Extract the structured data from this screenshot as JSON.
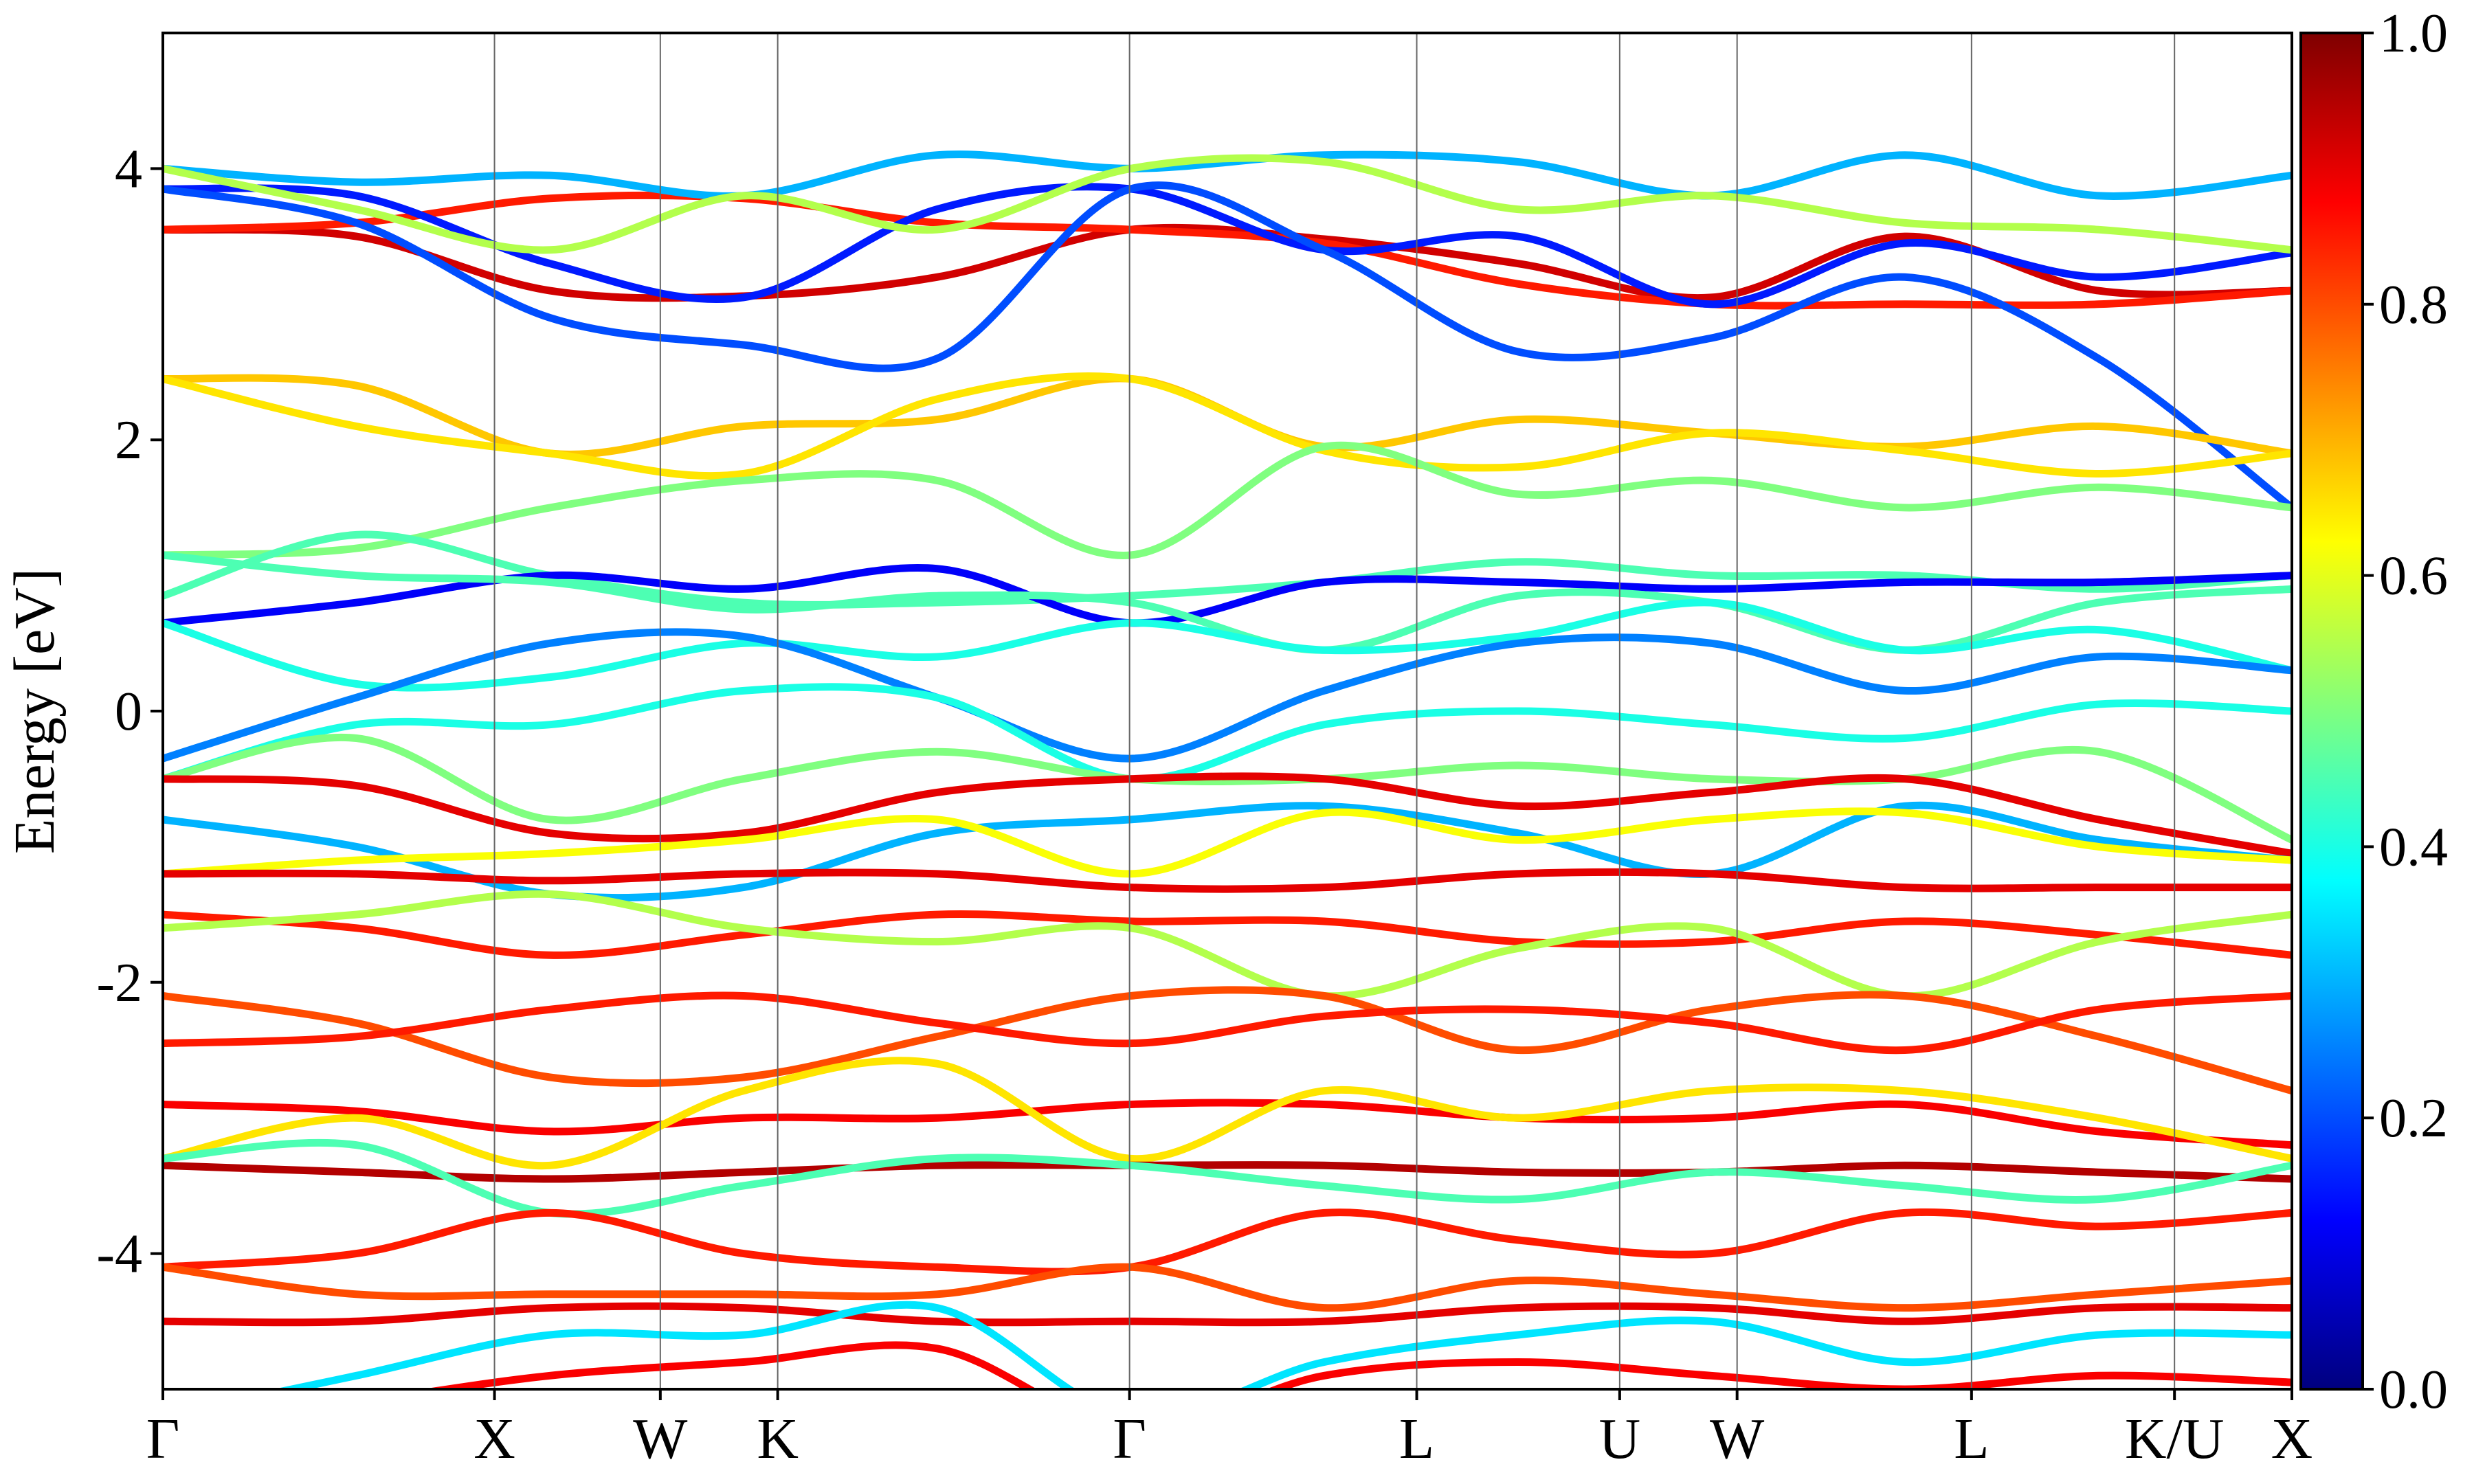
{
  "chart_data": {
    "type": "line",
    "title": "",
    "xlabel": "",
    "ylabel": "Energy [eV]",
    "ylim": [
      -5,
      5
    ],
    "grid": false,
    "legend": "none",
    "x_high_symmetry": [
      {
        "label": "Γ",
        "x": 0.0
      },
      {
        "label": "X",
        "x": 1.0
      },
      {
        "label": "W",
        "x": 1.5
      },
      {
        "label": "K",
        "x": 1.854
      },
      {
        "label": "Γ",
        "x": 2.915
      },
      {
        "label": "L",
        "x": 3.781
      },
      {
        "label": "U",
        "x": 4.393
      },
      {
        "label": "W",
        "x": 4.747
      },
      {
        "label": "L",
        "x": 5.454
      },
      {
        "label": "K/U",
        "x": 6.066
      },
      {
        "label": "X",
        "x": 6.42
      }
    ],
    "xlim": [
      0,
      6.42
    ],
    "yticks": [
      {
        "value": 4,
        "label": "4"
      },
      {
        "value": 2,
        "label": "2"
      },
      {
        "value": 0,
        "label": "0"
      },
      {
        "value": -2,
        "label": "-2"
      },
      {
        "value": -4,
        "label": "-4"
      }
    ],
    "colorbar": {
      "colormap": "jet",
      "range": [
        0.0,
        1.0
      ],
      "ticks": [
        {
          "value": 0.0,
          "label": "0.0"
        },
        {
          "value": 0.2,
          "label": "0.2"
        },
        {
          "value": 0.4,
          "label": "0.4"
        },
        {
          "value": 0.6,
          "label": "0.6"
        },
        {
          "value": 0.8,
          "label": "0.8"
        },
        {
          "value": 1.0,
          "label": "1.0"
        }
      ],
      "stops": [
        "#00007f",
        "#0000ff",
        "#007fff",
        "#00ffff",
        "#7fff7f",
        "#ffff00",
        "#ff7f00",
        "#ff0000",
        "#7f0000"
      ]
    },
    "series": [
      {
        "weight": 0.92,
        "values": [
          3.55,
          3.5,
          3.1,
          3.06,
          3.2,
          3.55,
          3.48,
          3.3,
          3.05,
          3.5,
          3.1,
          3.1
        ]
      },
      {
        "weight": 0.85,
        "values": [
          3.55,
          3.6,
          3.78,
          3.78,
          3.6,
          3.55,
          3.45,
          3.15,
          3.0,
          3.0,
          3.0,
          3.1
        ]
      },
      {
        "weight": 0.15,
        "values": [
          3.85,
          3.8,
          3.3,
          3.05,
          3.7,
          3.85,
          3.4,
          3.5,
          3.0,
          3.45,
          3.2,
          3.38
        ]
      },
      {
        "weight": 0.3,
        "values": [
          4.0,
          3.9,
          3.95,
          3.8,
          4.1,
          4.0,
          4.1,
          4.05,
          3.8,
          4.1,
          3.8,
          3.95
        ]
      },
      {
        "weight": 0.55,
        "values": [
          4.0,
          3.7,
          3.4,
          3.8,
          3.55,
          4.0,
          4.05,
          3.7,
          3.8,
          3.6,
          3.55,
          3.4
        ]
      },
      {
        "weight": 0.2,
        "values": [
          3.85,
          3.6,
          2.9,
          2.7,
          2.6,
          3.85,
          3.4,
          2.65,
          2.75,
          3.2,
          2.6,
          1.5
        ]
      },
      {
        "weight": 0.68,
        "values": [
          2.45,
          2.4,
          1.9,
          2.1,
          2.15,
          2.45,
          1.95,
          2.15,
          2.05,
          1.95,
          2.1,
          1.9
        ]
      },
      {
        "weight": 0.65,
        "values": [
          2.45,
          2.1,
          1.9,
          1.75,
          2.3,
          2.45,
          1.92,
          1.8,
          2.05,
          1.92,
          1.75,
          1.9
        ]
      },
      {
        "weight": 0.5,
        "values": [
          1.15,
          1.2,
          1.5,
          1.7,
          1.7,
          1.15,
          1.95,
          1.6,
          1.7,
          1.5,
          1.65,
          1.5
        ]
      },
      {
        "weight": 0.45,
        "values": [
          0.85,
          1.3,
          1.0,
          0.8,
          0.8,
          0.85,
          0.95,
          1.1,
          1.0,
          1.0,
          0.9,
          1.0
        ]
      },
      {
        "weight": 0.12,
        "values": [
          0.65,
          0.8,
          1.0,
          0.9,
          1.05,
          0.65,
          0.95,
          0.95,
          0.9,
          0.95,
          0.95,
          1.0
        ]
      },
      {
        "weight": 0.45,
        "values": [
          1.15,
          1.0,
          0.95,
          0.75,
          0.85,
          0.8,
          0.45,
          0.85,
          0.8,
          0.45,
          0.8,
          0.9
        ]
      },
      {
        "weight": 0.4,
        "values": [
          0.65,
          0.2,
          0.25,
          0.5,
          0.4,
          0.65,
          0.45,
          0.55,
          0.8,
          0.45,
          0.6,
          0.3
        ]
      },
      {
        "weight": 0.25,
        "values": [
          -0.35,
          0.1,
          0.5,
          0.55,
          0.1,
          -0.35,
          0.15,
          0.5,
          0.5,
          0.15,
          0.4,
          0.3
        ]
      },
      {
        "weight": 0.4,
        "values": [
          -0.5,
          -0.1,
          -0.1,
          0.15,
          0.1,
          -0.5,
          -0.1,
          0.0,
          -0.1,
          -0.2,
          0.05,
          0.0
        ]
      },
      {
        "weight": 0.5,
        "values": [
          -0.5,
          -0.2,
          -0.8,
          -0.5,
          -0.3,
          -0.5,
          -0.5,
          -0.4,
          -0.5,
          -0.5,
          -0.3,
          -0.95
        ]
      },
      {
        "weight": 0.9,
        "values": [
          -0.5,
          -0.55,
          -0.9,
          -0.9,
          -0.6,
          -0.5,
          -0.5,
          -0.7,
          -0.6,
          -0.5,
          -0.8,
          -1.05
        ]
      },
      {
        "weight": 0.3,
        "values": [
          -0.8,
          -1.0,
          -1.35,
          -1.3,
          -0.9,
          -0.8,
          -0.7,
          -0.9,
          -1.2,
          -0.7,
          -0.95,
          -1.1
        ]
      },
      {
        "weight": 0.62,
        "values": [
          -1.2,
          -1.1,
          -1.05,
          -0.95,
          -0.8,
          -1.2,
          -0.75,
          -0.95,
          -0.8,
          -0.75,
          -1.0,
          -1.1
        ]
      },
      {
        "weight": 0.9,
        "values": [
          -1.2,
          -1.2,
          -1.25,
          -1.2,
          -1.2,
          -1.3,
          -1.3,
          -1.2,
          -1.2,
          -1.3,
          -1.3,
          -1.3
        ]
      },
      {
        "weight": 0.85,
        "values": [
          -1.5,
          -1.6,
          -1.8,
          -1.65,
          -1.5,
          -1.55,
          -1.55,
          -1.7,
          -1.7,
          -1.55,
          -1.65,
          -1.8
        ]
      },
      {
        "weight": 0.55,
        "values": [
          -1.6,
          -1.5,
          -1.35,
          -1.6,
          -1.7,
          -1.6,
          -2.1,
          -1.75,
          -1.6,
          -2.1,
          -1.7,
          -1.5
        ]
      },
      {
        "weight": 0.8,
        "values": [
          -2.1,
          -2.3,
          -2.7,
          -2.7,
          -2.4,
          -2.1,
          -2.1,
          -2.5,
          -2.2,
          -2.1,
          -2.4,
          -2.8
        ]
      },
      {
        "weight": 0.85,
        "values": [
          -2.45,
          -2.4,
          -2.2,
          -2.1,
          -2.3,
          -2.45,
          -2.25,
          -2.2,
          -2.3,
          -2.5,
          -2.2,
          -2.1
        ]
      },
      {
        "weight": 0.88,
        "values": [
          -2.9,
          -2.95,
          -3.1,
          -3.0,
          -3.0,
          -2.9,
          -2.9,
          -3.0,
          -3.0,
          -2.9,
          -3.1,
          -3.2
        ]
      },
      {
        "weight": 0.65,
        "values": [
          -3.3,
          -3.0,
          -3.35,
          -2.8,
          -2.6,
          -3.3,
          -2.8,
          -3.0,
          -2.8,
          -2.8,
          -3.0,
          -3.3
        ]
      },
      {
        "weight": 0.95,
        "values": [
          -3.35,
          -3.4,
          -3.45,
          -3.4,
          -3.35,
          -3.35,
          -3.35,
          -3.4,
          -3.4,
          -3.35,
          -3.4,
          -3.45
        ]
      },
      {
        "weight": 0.45,
        "values": [
          -3.3,
          -3.2,
          -3.7,
          -3.5,
          -3.3,
          -3.35,
          -3.5,
          -3.6,
          -3.4,
          -3.5,
          -3.6,
          -3.35
        ]
      },
      {
        "weight": 0.85,
        "values": [
          -4.1,
          -4.0,
          -3.7,
          -4.0,
          -4.1,
          -4.1,
          -3.7,
          -3.9,
          -4.0,
          -3.7,
          -3.8,
          -3.7
        ]
      },
      {
        "weight": 0.8,
        "values": [
          -4.1,
          -4.3,
          -4.3,
          -4.3,
          -4.3,
          -4.1,
          -4.4,
          -4.2,
          -4.3,
          -4.4,
          -4.3,
          -4.2
        ]
      },
      {
        "weight": 0.9,
        "values": [
          -4.5,
          -4.5,
          -4.4,
          -4.4,
          -4.5,
          -4.5,
          -4.5,
          -4.4,
          -4.4,
          -4.5,
          -4.4,
          -4.4
        ]
      },
      {
        "weight": 0.35,
        "values": [
          -5.2,
          -4.9,
          -4.6,
          -4.6,
          -4.4,
          -5.2,
          -4.8,
          -4.6,
          -4.5,
          -4.8,
          -4.6,
          -4.6
        ]
      },
      {
        "weight": 0.88,
        "values": [
          -5.3,
          -5.1,
          -4.9,
          -4.8,
          -4.7,
          -5.3,
          -4.9,
          -4.8,
          -4.9,
          -5.0,
          -4.9,
          -4.95
        ]
      }
    ]
  }
}
